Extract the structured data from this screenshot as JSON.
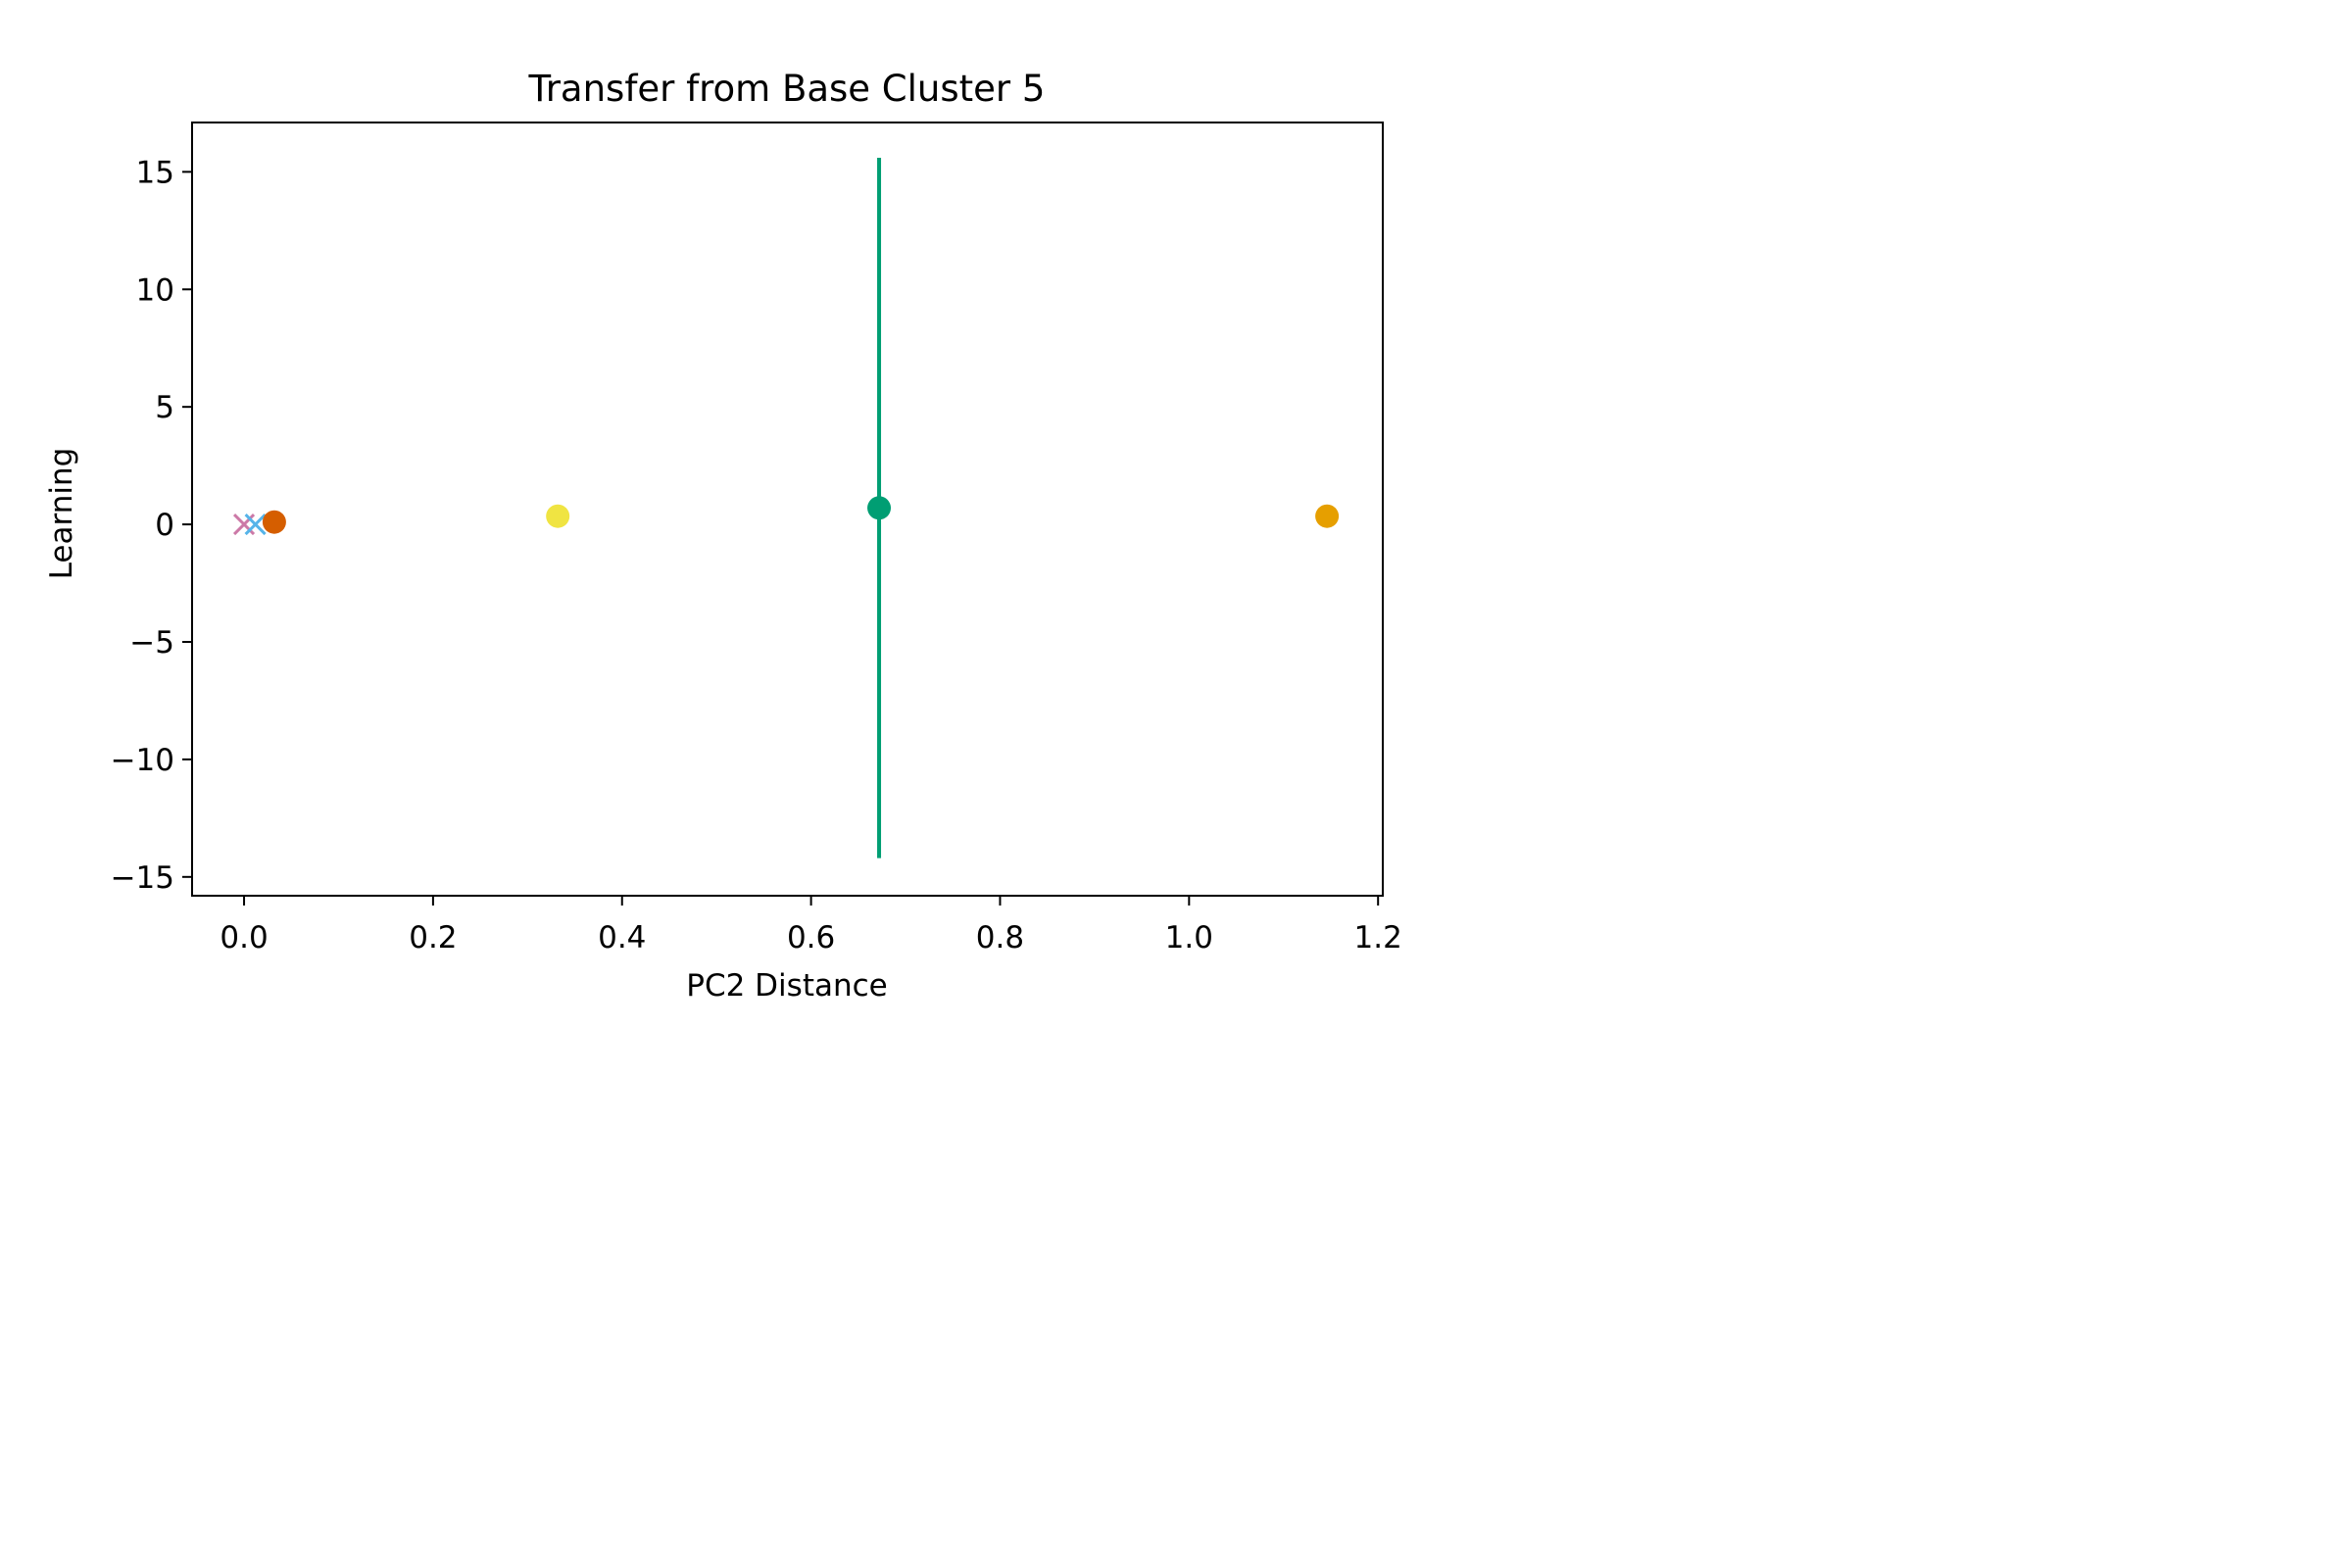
{
  "chart_data": {
    "type": "scatter",
    "title": "Transfer from Base Cluster 5",
    "xlabel": "PC2 Distance",
    "ylabel": "Learning",
    "xlim": [
      -0.055,
      1.205
    ],
    "ylim": [
      -15.8,
      17.1
    ],
    "xticks": [
      0.0,
      0.2,
      0.4,
      0.6,
      0.8,
      1.0,
      1.2
    ],
    "xtick_labels": [
      "0.0",
      "0.2",
      "0.4",
      "0.6",
      "0.8",
      "1.0",
      "1.2"
    ],
    "yticks": [
      -15,
      -10,
      -5,
      0,
      5,
      10,
      15
    ],
    "ytick_labels": [
      "−15",
      "−10",
      "−5",
      "0",
      "5",
      "10",
      "15"
    ],
    "grid": false,
    "points": [
      {
        "x": 0.0,
        "y": 0.0,
        "marker": "x",
        "color": "#cc79a7",
        "error": null
      },
      {
        "x": 0.012,
        "y": 0.0,
        "marker": "x",
        "color": "#56b4e9",
        "error": null
      },
      {
        "x": 0.032,
        "y": 0.1,
        "marker": "o",
        "color": "#d55e00",
        "error": 0.4
      },
      {
        "x": 0.332,
        "y": 0.35,
        "marker": "o",
        "color": "#f0e442",
        "error": null
      },
      {
        "x": 0.672,
        "y": 0.7,
        "marker": "o",
        "color": "#009e73",
        "error": 14.9
      },
      {
        "x": 1.146,
        "y": 0.35,
        "marker": "o",
        "color": "#e69f00",
        "error": null
      }
    ]
  }
}
